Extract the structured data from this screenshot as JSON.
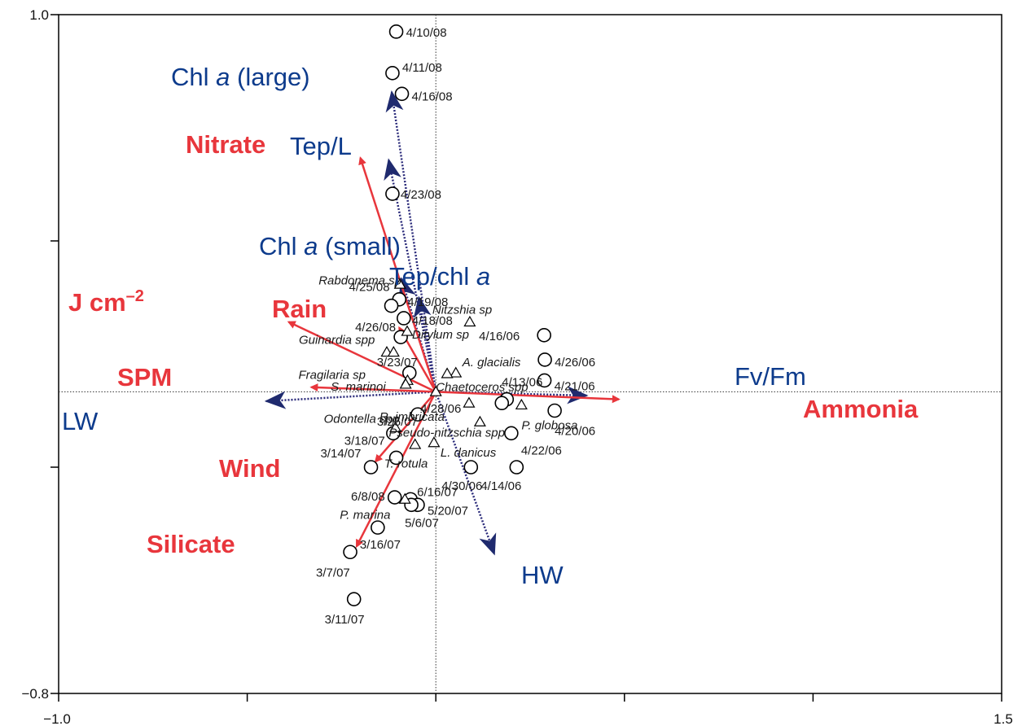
{
  "chart_data": {
    "type": "scatter",
    "title": "",
    "xlabel": "",
    "ylabel": "",
    "xlim": [
      -1.0,
      1.5
    ],
    "ylim": [
      -0.8,
      1.0
    ],
    "x_tick_labels": [
      "−1.0",
      "1.5"
    ],
    "y_tick_labels": [
      "1.0",
      "−0.8"
    ],
    "colors": {
      "environmental": "#e8363c",
      "response": "#0d3b8c",
      "points": "#000000"
    },
    "samples": [
      {
        "label": "4/10/08",
        "x": -0.105,
        "y": 0.955
      },
      {
        "label": "4/11/08",
        "x": -0.115,
        "y": 0.845
      },
      {
        "label": "4/16/08",
        "x": -0.09,
        "y": 0.79
      },
      {
        "label": "4/23/08",
        "x": -0.115,
        "y": 0.525
      },
      {
        "label": "4/19/08",
        "x": -0.097,
        "y": 0.245
      },
      {
        "label": "4/25/08",
        "x": -0.118,
        "y": 0.228
      },
      {
        "label": "4/18/08",
        "x": -0.085,
        "y": 0.195
      },
      {
        "label": "4/26/08",
        "x": -0.093,
        "y": 0.145
      },
      {
        "label": "3/23/07",
        "x": -0.07,
        "y": 0.05
      },
      {
        "label": "3/25/07",
        "x": -0.048,
        "y": -0.06
      },
      {
        "label": "3/18/07",
        "x": -0.113,
        "y": -0.11
      },
      {
        "label": "3/14/07",
        "x": -0.172,
        "y": -0.2
      },
      {
        "label": "T. rotula",
        "x": -0.105,
        "y": -0.175
      },
      {
        "label": "6/8/08",
        "x": -0.109,
        "y": -0.28
      },
      {
        "label": "6/16/07",
        "x": -0.067,
        "y": -0.285
      },
      {
        "label": "5/20/07",
        "x": -0.048,
        "y": -0.3
      },
      {
        "label": "5/6/07",
        "x": -0.065,
        "y": -0.3
      },
      {
        "label": "3/16/07",
        "x": -0.154,
        "y": -0.36
      },
      {
        "label": "3/7/07",
        "x": -0.227,
        "y": -0.425
      },
      {
        "label": "3/11/07",
        "x": -0.217,
        "y": -0.55
      },
      {
        "label": "4/16/06",
        "x": 0.287,
        "y": 0.15
      },
      {
        "label": "4/26/06",
        "x": 0.289,
        "y": 0.085
      },
      {
        "label": "4/21/06",
        "x": 0.288,
        "y": 0.03
      },
      {
        "label": "4/13/06",
        "x": 0.188,
        "y": -0.02
      },
      {
        "label": "4/28/06",
        "x": 0.175,
        "y": -0.03
      },
      {
        "label": "4/20/06",
        "x": 0.315,
        "y": -0.05
      },
      {
        "label": "4/22/06",
        "x": 0.2,
        "y": -0.11
      },
      {
        "label": "4/30/06",
        "x": 0.093,
        "y": -0.2
      },
      {
        "label": "4/14/06",
        "x": 0.214,
        "y": -0.2
      }
    ],
    "species": [
      {
        "label": "Rabdonema sp",
        "x": -0.095,
        "y": 0.285
      },
      {
        "label": "Nitzshia sp",
        "x": 0.09,
        "y": 0.185
      },
      {
        "label": "Ditylum sp",
        "x": -0.076,
        "y": 0.16
      },
      {
        "label": "Guinardia spp",
        "x": -0.13,
        "y": 0.105
      },
      {
        "label": "",
        "x": -0.112,
        "y": 0.105
      },
      {
        "label": "A. glacialis",
        "x": 0.053,
        "y": 0.05
      },
      {
        "label": "",
        "x": 0.03,
        "y": 0.048
      },
      {
        "label": "Fragilaria sp",
        "x": -0.075,
        "y": 0.03
      },
      {
        "label": "S. marinoi",
        "x": -0.08,
        "y": 0.02
      },
      {
        "label": "Chaetoceros spp",
        "x": 0,
        "y": 0
      },
      {
        "label": "R. imbricata",
        "x": 0.088,
        "y": -0.03
      },
      {
        "label": "P. globosa",
        "x": 0.227,
        "y": -0.035
      },
      {
        "label": "Pseudo-nitzschia spp",
        "x": 0.117,
        "y": -0.08
      },
      {
        "label": "Odontella spp",
        "x": -0.107,
        "y": -0.095
      },
      {
        "label": "L. danicus",
        "x": -0.005,
        "y": -0.135
      },
      {
        "label": "",
        "x": -0.055,
        "y": -0.14
      },
      {
        "label": "P. marina",
        "x": -0.082,
        "y": -0.285
      }
    ],
    "environmental_vectors": [
      {
        "label": "Nitrate",
        "x": -0.2,
        "y": 0.62
      },
      {
        "label": "J cm",
        "superscript": "–2",
        "x": -0.39,
        "y": 0.185
      },
      {
        "label": "Rain",
        "x": -0.097,
        "y": 0.17
      },
      {
        "label": "SPM",
        "x": -0.33,
        "y": 0.012
      },
      {
        "label": "Wind",
        "x": -0.16,
        "y": -0.185
      },
      {
        "label": "Silicate",
        "x": -0.21,
        "y": -0.41
      },
      {
        "label": "Ammonia",
        "x": 0.485,
        "y": -0.02
      }
    ],
    "response_vectors": [
      {
        "label": "Chl ",
        "label_italic": "a",
        "label_suffix": " (large)",
        "x": -0.117,
        "y": 0.795
      },
      {
        "label": "Tep/L",
        "x": -0.125,
        "y": 0.615
      },
      {
        "label": "Chl ",
        "label_italic": "a",
        "label_suffix": " (small)",
        "x": -0.091,
        "y": 0.3
      },
      {
        "label": "Tep/chl ",
        "label_italic": "a",
        "label_suffix": "",
        "x": -0.045,
        "y": 0.25
      },
      {
        "label": "Fv/Fm",
        "x": 0.4,
        "y": -0.01
      },
      {
        "label": "LW",
        "x": -0.45,
        "y": -0.025
      },
      {
        "label": "HW",
        "x": 0.155,
        "y": -0.43
      }
    ]
  }
}
